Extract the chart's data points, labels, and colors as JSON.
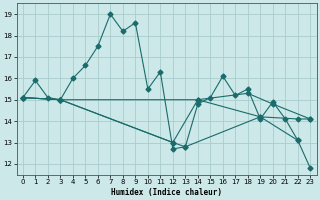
{
  "xlabel": "Humidex (Indice chaleur)",
  "background_color": "#cce8e8",
  "grid_color": "#aacccc",
  "line_color": "#1a6b6b",
  "xlim": [
    -0.5,
    23.5
  ],
  "ylim": [
    11.5,
    19.5
  ],
  "xticks": [
    0,
    1,
    2,
    3,
    4,
    5,
    6,
    7,
    8,
    9,
    10,
    11,
    12,
    13,
    14,
    15,
    16,
    17,
    18,
    19,
    20,
    21,
    22,
    23
  ],
  "yticks": [
    12,
    13,
    14,
    15,
    16,
    17,
    18,
    19
  ],
  "series": [
    {
      "x": [
        0,
        1,
        2,
        3,
        4,
        5,
        6,
        7,
        8,
        9,
        10,
        11,
        12,
        13,
        14,
        15,
        16,
        17,
        18,
        19,
        20,
        21,
        22
      ],
      "y": [
        15.1,
        15.9,
        15.1,
        15.0,
        16.0,
        16.6,
        17.5,
        19.0,
        18.2,
        18.6,
        15.5,
        16.3,
        12.7,
        12.8,
        14.8,
        15.1,
        16.1,
        15.2,
        15.5,
        14.1,
        14.9,
        14.1,
        13.1
      ]
    },
    {
      "x": [
        0,
        3,
        12,
        13,
        19,
        22,
        23
      ],
      "y": [
        15.1,
        15.0,
        13.0,
        12.8,
        14.2,
        13.1,
        11.8
      ]
    },
    {
      "x": [
        0,
        3,
        12,
        14,
        18,
        20,
        23
      ],
      "y": [
        15.1,
        15.0,
        13.0,
        15.0,
        15.3,
        14.8,
        14.1
      ]
    },
    {
      "x": [
        0,
        3,
        14,
        19,
        22,
        23
      ],
      "y": [
        15.1,
        15.0,
        15.0,
        14.2,
        14.1,
        14.1
      ]
    }
  ]
}
